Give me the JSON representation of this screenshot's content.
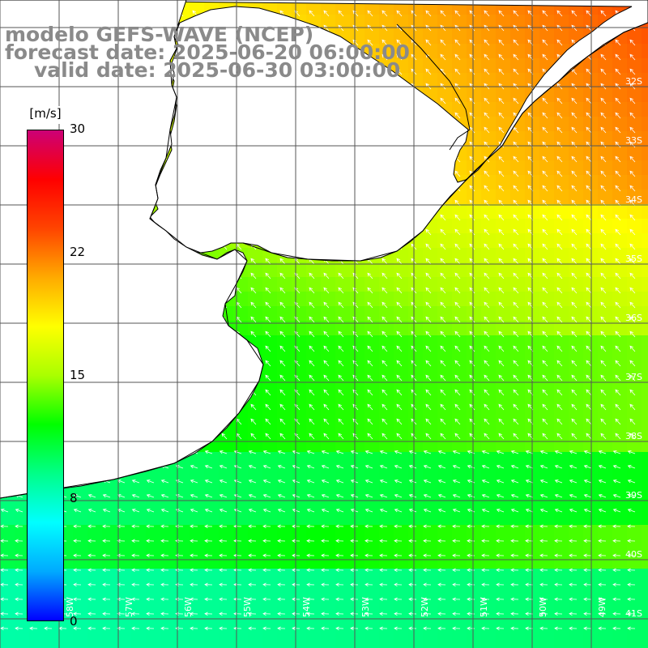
{
  "title": {
    "line1": "modelo GEFS-WAVE (NCEP)",
    "line2": "forecast date: 2025-06-20 06:00:00",
    "line3": "valid date: 2025-06-30 03:00:00"
  },
  "colorbar": {
    "unit": "[m/s]",
    "min": 0,
    "max": 30,
    "ticks": [
      "30",
      "22",
      "15",
      "8",
      "0"
    ],
    "stops": [
      "#0000ff",
      "#00aaff",
      "#00ffff",
      "#00ff88",
      "#00ff00",
      "#aaff00",
      "#ffff00",
      "#ffaa00",
      "#ff4400",
      "#ff0000",
      "#cc0077"
    ]
  },
  "map": {
    "lat_labels": [
      "32S",
      "33S",
      "34S",
      "35S",
      "36S",
      "37S",
      "38S",
      "39S",
      "40S",
      "41S"
    ],
    "lon_labels": [
      "58W",
      "57W",
      "56W",
      "55W",
      "54W",
      "53W",
      "52W",
      "51W",
      "50W",
      "49W"
    ],
    "land_color": "#ffffff",
    "grid_color": "#555555",
    "arrow_color": "#ffffff"
  }
}
